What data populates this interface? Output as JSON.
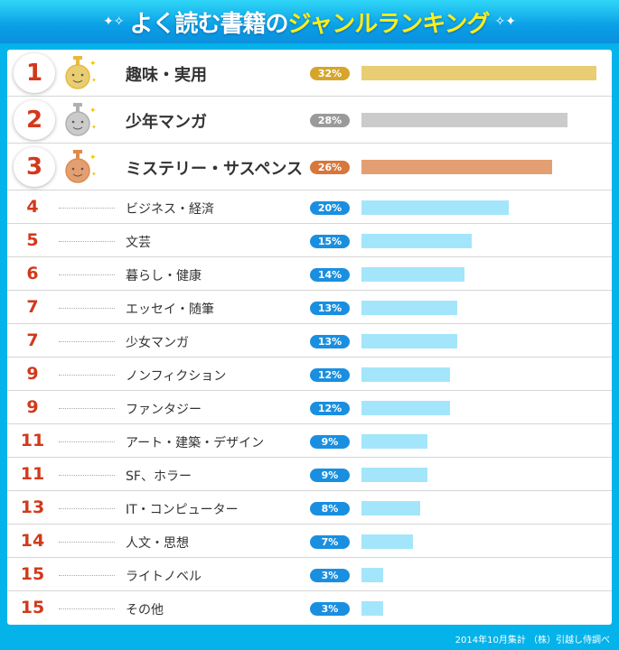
{
  "header": {
    "title_white": "よく読む書籍の",
    "title_yellow": "ジャンルランキング"
  },
  "footer": "2014年10月集計 （株）引越し侍調べ",
  "colors": {
    "gold": "#e8cd72",
    "gold_badge": "#d6a52a",
    "silver": "#cbcbcb",
    "silver_badge": "#9a9a9a",
    "bronze": "#e39f72",
    "bronze_badge": "#d7773c",
    "blue": "#a3e6fb",
    "blue_badge": "#1a8fe0"
  },
  "chart_data": {
    "type": "bar",
    "orientation": "horizontal",
    "unit": "%",
    "rows": [
      {
        "rank": "1",
        "label": "趣味・実用",
        "value": 32,
        "pct": "32%"
      },
      {
        "rank": "2",
        "label": "少年マンガ",
        "value": 28,
        "pct": "28%"
      },
      {
        "rank": "3",
        "label": "ミステリー・サスペンス",
        "value": 26,
        "pct": "26%"
      },
      {
        "rank": "4",
        "label": "ビジネス・経済",
        "value": 20,
        "pct": "20%"
      },
      {
        "rank": "5",
        "label": "文芸",
        "value": 15,
        "pct": "15%"
      },
      {
        "rank": "6",
        "label": "暮らし・健康",
        "value": 14,
        "pct": "14%"
      },
      {
        "rank": "7",
        "label": "エッセイ・随筆",
        "value": 13,
        "pct": "13%"
      },
      {
        "rank": "7",
        "label": "少女マンガ",
        "value": 13,
        "pct": "13%"
      },
      {
        "rank": "9",
        "label": "ノンフィクション",
        "value": 12,
        "pct": "12%"
      },
      {
        "rank": "9",
        "label": "ファンタジー",
        "value": 12,
        "pct": "12%"
      },
      {
        "rank": "11",
        "label": "アート・建築・デザイン",
        "value": 9,
        "pct": "9%"
      },
      {
        "rank": "11",
        "label": "SF、ホラー",
        "value": 9,
        "pct": "9%"
      },
      {
        "rank": "13",
        "label": "IT・コンピューター",
        "value": 8,
        "pct": "8%"
      },
      {
        "rank": "14",
        "label": "人文・思想",
        "value": 7,
        "pct": "7%"
      },
      {
        "rank": "15",
        "label": "ライトノベル",
        "value": 3,
        "pct": "3%"
      },
      {
        "rank": "15",
        "label": "その他",
        "value": 3,
        "pct": "3%"
      }
    ]
  }
}
